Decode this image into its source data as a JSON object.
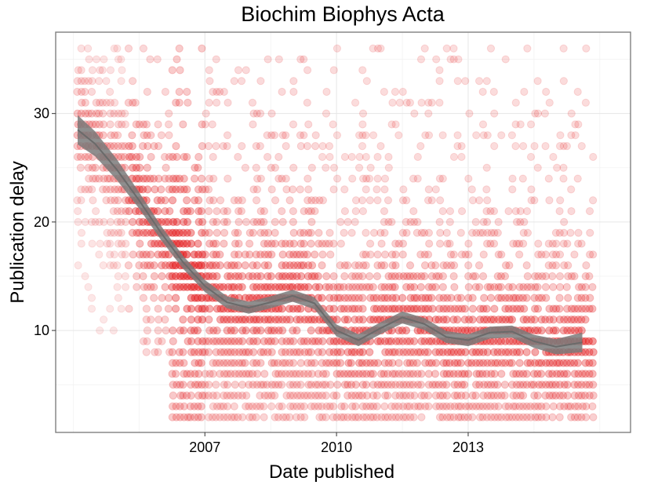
{
  "chart_data": {
    "type": "scatter",
    "title": "Biochim Biophys Acta",
    "xlabel": "Date published",
    "ylabel": "Publication delay",
    "x_ticks": [
      {
        "value": 2007,
        "label": "2007"
      },
      {
        "value": 2010,
        "label": "2010"
      },
      {
        "value": 2013,
        "label": "2013"
      }
    ],
    "y_ticks": [
      {
        "value": 10,
        "label": "10"
      },
      {
        "value": 20,
        "label": "20"
      },
      {
        "value": 30,
        "label": "30"
      }
    ],
    "xlim": [
      2003.6,
      2016.7
    ],
    "ylim": [
      0.6,
      37.5
    ],
    "grid": true,
    "point_color": "#e31a1c",
    "point_alpha": 0.12,
    "smooth_color": "#7a7a7a",
    "point_summary": {
      "x_range": [
        2004.1,
        2015.9
      ],
      "y_range": [
        2,
        36
      ],
      "note_free": true
    },
    "point_density": [
      {
        "x_from": 2004.1,
        "x_to": 2005.2,
        "y_min": 10,
        "y_max": 36,
        "alpha": 0.1
      },
      {
        "x_from": 2005.2,
        "x_to": 2006.2,
        "y_min": 8,
        "y_max": 36,
        "alpha": 0.16
      },
      {
        "x_from": 2006.2,
        "x_to": 2007.0,
        "y_min": 2,
        "y_max": 36,
        "alpha": 0.22
      },
      {
        "x_from": 2007.0,
        "x_to": 2009.6,
        "y_min": 2,
        "y_max": 35,
        "alpha": 0.16
      },
      {
        "x_from": 2009.6,
        "x_to": 2015.9,
        "y_min": 2,
        "y_max": 36,
        "alpha": 0.15
      }
    ],
    "smooth_line": [
      {
        "x": 2004.1,
        "y": 28.5,
        "se": 1.0
      },
      {
        "x": 2004.5,
        "y": 27.2,
        "se": 0.8
      },
      {
        "x": 2005.0,
        "y": 24.8,
        "se": 0.6
      },
      {
        "x": 2005.5,
        "y": 22.0,
        "se": 0.4
      },
      {
        "x": 2006.0,
        "y": 19.0,
        "se": 0.3
      },
      {
        "x": 2006.5,
        "y": 16.3,
        "se": 0.25
      },
      {
        "x": 2007.0,
        "y": 14.1,
        "se": 0.2
      },
      {
        "x": 2007.5,
        "y": 12.6,
        "se": 0.2
      },
      {
        "x": 2008.0,
        "y": 12.1,
        "se": 0.2
      },
      {
        "x": 2008.5,
        "y": 12.6,
        "se": 0.2
      },
      {
        "x": 2009.0,
        "y": 13.2,
        "se": 0.2
      },
      {
        "x": 2009.5,
        "y": 12.5,
        "se": 0.2
      },
      {
        "x": 2010.0,
        "y": 10.0,
        "se": 0.2
      },
      {
        "x": 2010.5,
        "y": 9.1,
        "se": 0.2
      },
      {
        "x": 2011.0,
        "y": 10.2,
        "se": 0.2
      },
      {
        "x": 2011.5,
        "y": 11.2,
        "se": 0.2
      },
      {
        "x": 2012.0,
        "y": 10.6,
        "se": 0.2
      },
      {
        "x": 2012.5,
        "y": 9.4,
        "se": 0.2
      },
      {
        "x": 2013.0,
        "y": 9.1,
        "se": 0.2
      },
      {
        "x": 2013.5,
        "y": 9.8,
        "se": 0.2
      },
      {
        "x": 2014.0,
        "y": 9.9,
        "se": 0.2
      },
      {
        "x": 2014.5,
        "y": 9.0,
        "se": 0.25
      },
      {
        "x": 2015.0,
        "y": 8.5,
        "se": 0.35
      },
      {
        "x": 2015.6,
        "y": 8.9,
        "se": 0.55
      }
    ]
  }
}
